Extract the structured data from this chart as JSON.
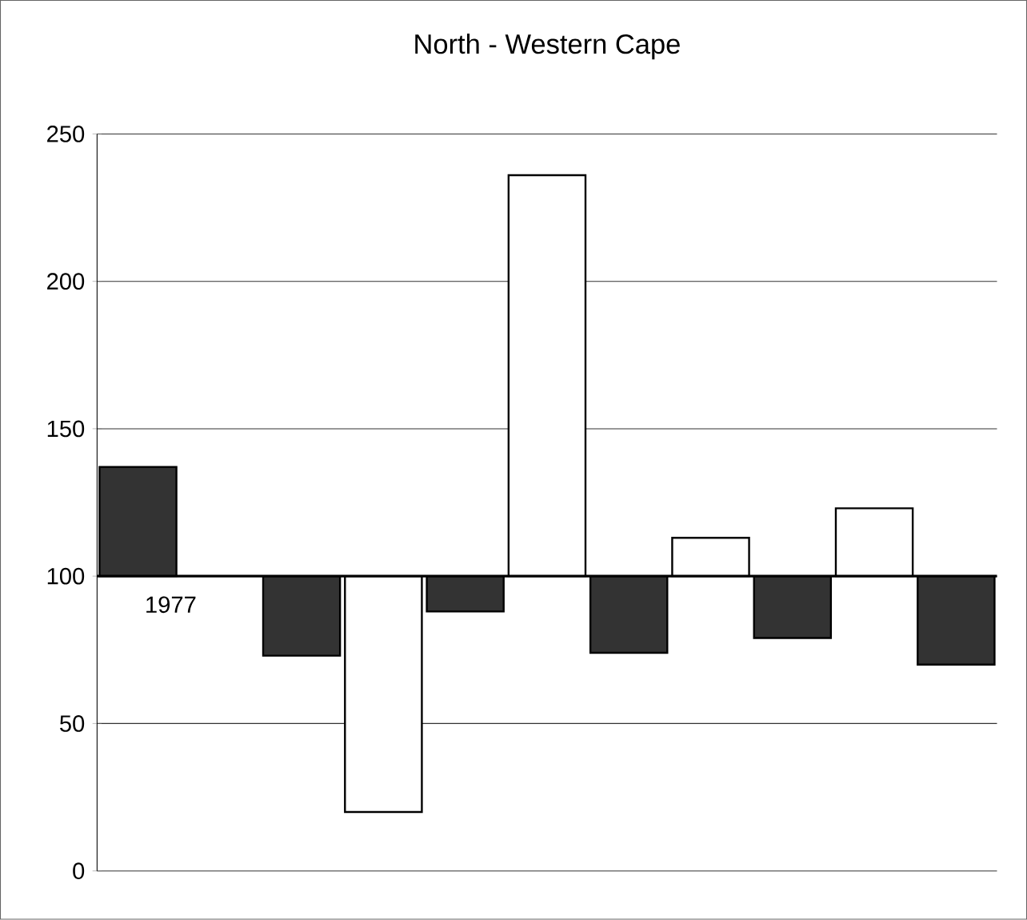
{
  "chart_data": {
    "type": "bar",
    "title": "North - Western Cape",
    "categories": [
      "1977",
      null,
      null,
      null,
      null,
      null,
      null,
      null,
      null,
      null,
      null
    ],
    "ref_lines": [
      {
        "axis": "y",
        "value": 100,
        "color": "#000000"
      }
    ],
    "base": [
      100,
      null,
      100,
      100,
      100,
      100,
      100,
      100,
      100,
      100,
      100
    ],
    "values": [
      37,
      null,
      -27,
      -80,
      -12,
      136,
      -26,
      13,
      -21,
      23,
      -30
    ],
    "colors": [
      "#333333",
      "#ffffff",
      "#333333",
      "#ffffff",
      "#333333",
      "#ffffff",
      "#333333",
      "#ffffff",
      "#333333",
      "#ffffff",
      "#333333"
    ],
    "ylim": [
      0,
      250
    ],
    "yticks": [
      0,
      50,
      100,
      150,
      200,
      250
    ],
    "grid": "y"
  }
}
